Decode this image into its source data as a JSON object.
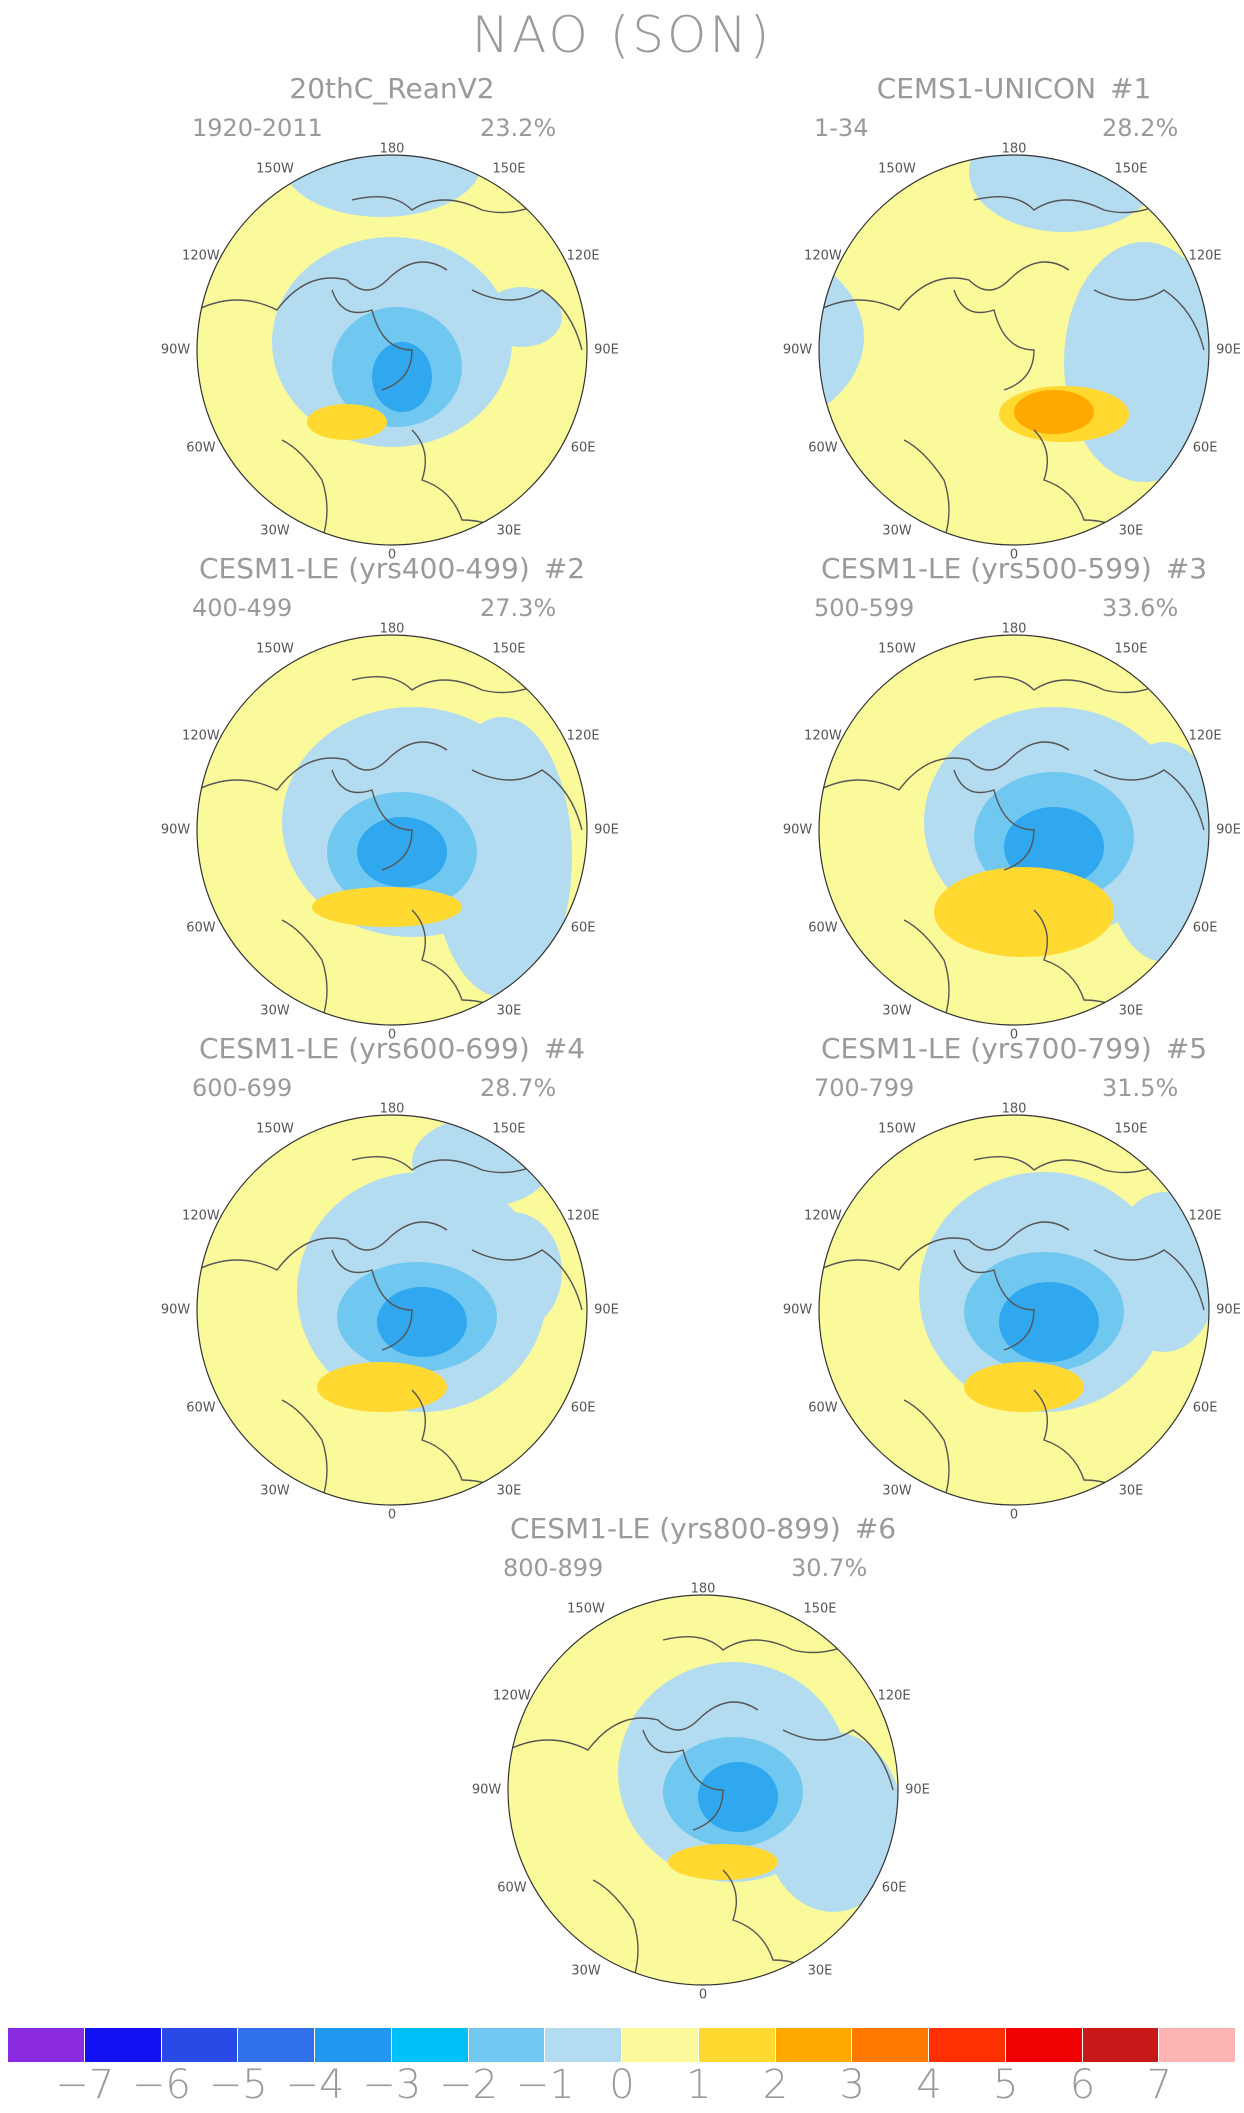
{
  "title": "NAO (SON)",
  "panels": [
    {
      "name": "20thC_ReanV2",
      "num": "",
      "period": "1920-2011",
      "pct": "23.2%"
    },
    {
      "name": "CEMS1-UNICON",
      "num": "#1",
      "period": "1-34",
      "pct": "28.2%"
    },
    {
      "name": "CESM1-LE (yrs400-499)",
      "num": "#2",
      "period": "400-499",
      "pct": "27.3%"
    },
    {
      "name": "CESM1-LE (yrs500-599)",
      "num": "#3",
      "period": "500-599",
      "pct": "33.6%"
    },
    {
      "name": "CESM1-LE (yrs600-699)",
      "num": "#4",
      "period": "600-699",
      "pct": "28.7%"
    },
    {
      "name": "CESM1-LE (yrs700-799)",
      "num": "#5",
      "period": "700-799",
      "pct": "31.5%"
    },
    {
      "name": "CESM1-LE (yrs800-899)",
      "num": "#6",
      "period": "800-899",
      "pct": "30.7%"
    }
  ],
  "lon_labels": {
    "top": "180",
    "bottom": "0",
    "left": "90W",
    "right": "90E",
    "ul": "150W",
    "ur": "150E",
    "ml_up": "120W",
    "mr_up": "120E",
    "ml_low": "60W",
    "mr_low": "60E",
    "ll": "30W",
    "lr": "30E"
  },
  "colorbar": {
    "colors": [
      "#8a2be2",
      "#1010f0",
      "#2a4ae8",
      "#3070e8",
      "#2098f0",
      "#00c0f8",
      "#70c8f0",
      "#b4dcf0",
      "#fafa9a",
      "#ffd830",
      "#ffa800",
      "#ff7800",
      "#ff3000",
      "#f00000",
      "#c81818",
      "#ffb4b4"
    ],
    "ticks": [
      "−7",
      "−6",
      "−5",
      "−4",
      "−3",
      "−2",
      "−1",
      "0",
      "1",
      "2",
      "3",
      "4",
      "5",
      "6",
      "7"
    ]
  },
  "colors": {
    "ocean_neutral": "#fafa9a",
    "neg1": "#b4dcf0",
    "neg2": "#70c8f0",
    "neg3": "#30a8f0",
    "pos1": "#ffd830",
    "pos2": "#ffa800",
    "coast": "#555555"
  }
}
